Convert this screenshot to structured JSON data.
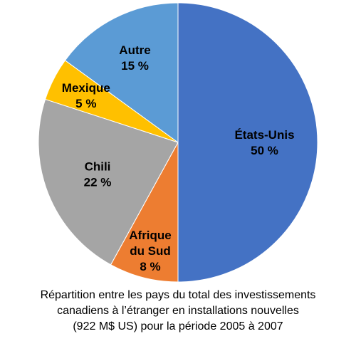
{
  "chart_data": {
    "type": "pie",
    "start": "top",
    "direction": "clockwise",
    "slices": [
      {
        "label": [
          "États-Unis",
          "50 %"
        ],
        "value": 50,
        "color": "#4472C4"
      },
      {
        "label": [
          "Afrique",
          "du Sud",
          "8 %"
        ],
        "value": 8,
        "color": "#ED7D31"
      },
      {
        "label": [
          "Chili",
          "22 %"
        ],
        "value": 22,
        "color": "#A5A5A5"
      },
      {
        "label": [
          "Mexique",
          "5 %"
        ],
        "value": 5,
        "color": "#FFC000"
      },
      {
        "label": [
          "Autre",
          "15 %"
        ],
        "value": 15,
        "color": "#5B9BD5"
      }
    ],
    "caption": [
      "Répartition entre les pays du total des investissements",
      "canadiens à l’étranger en installations nouvelles",
      "(922 M$ US) pour la période 2005 à 2007"
    ]
  }
}
